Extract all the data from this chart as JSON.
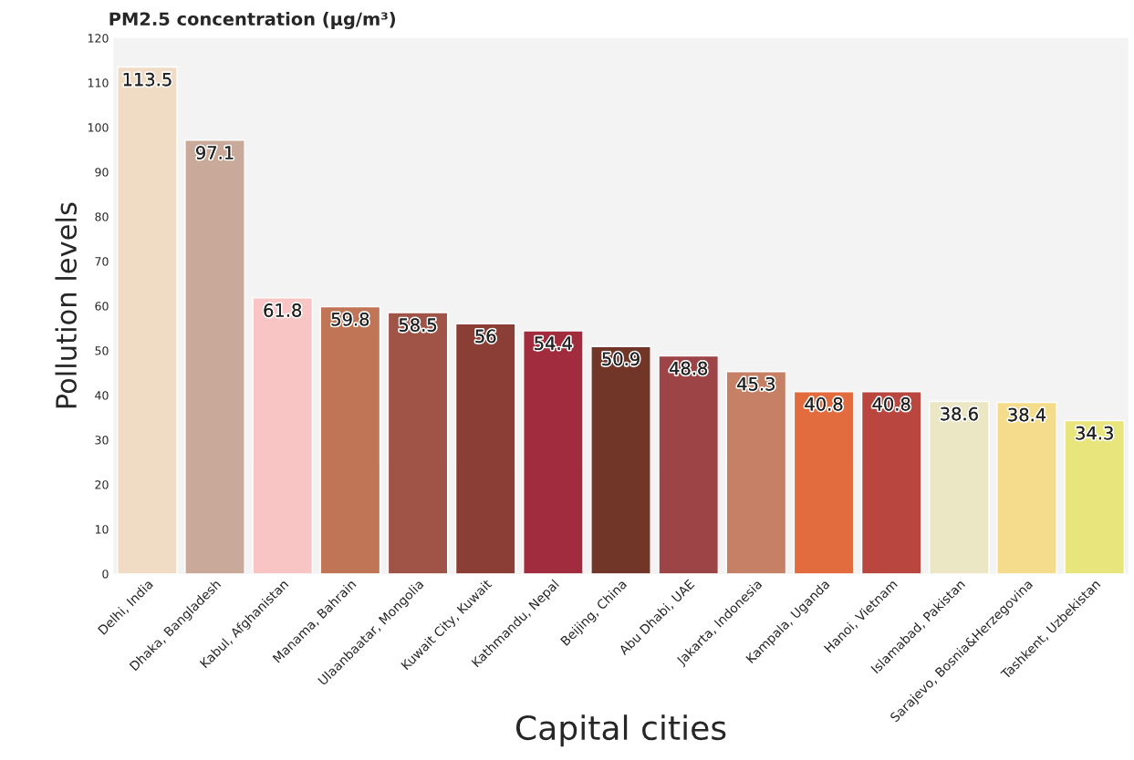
{
  "chart_data": {
    "type": "bar",
    "title": "PM2.5 concentration (µg/m³)",
    "xlabel": "Capital cities",
    "ylabel": "Pollution levels",
    "categories": [
      "Delhi, India",
      "Dhaka, Bangladesh",
      "Kabul, Afghanistan",
      "Manama, Bahrain",
      "Ulaanbaatar, Mongolia",
      "Kuwait City, Kuwait",
      "Kathmandu, Nepal",
      "Beijing, China",
      "Abu Dhabi, UAE",
      "Jakarta, Indonesia",
      "Kampala, Uganda",
      "Hanoi, Vietnam",
      "Islamabad, Pakistan",
      "Sarajevo, Bosnia&Herzegovina",
      "Tashkent, Uzbekistan"
    ],
    "values": [
      113.5,
      97.1,
      61.8,
      59.8,
      58.5,
      56,
      54.4,
      50.9,
      48.8,
      45.3,
      40.8,
      40.8,
      38.6,
      38.4,
      34.3
    ],
    "colors": [
      "#f0dcc4",
      "#c9aa9a",
      "#f8c4c4",
      "#c07656",
      "#a05448",
      "#8b3e35",
      "#a12c3d",
      "#723628",
      "#9c4446",
      "#c58066",
      "#e26c3e",
      "#ba4640",
      "#ebe6c4",
      "#f5dc8c",
      "#e8e57c"
    ],
    "ylim": [
      0,
      120
    ],
    "yticks": [
      0,
      10,
      20,
      30,
      40,
      50,
      60,
      70,
      80,
      90,
      100,
      110,
      120
    ],
    "grid": false,
    "data_labels": true
  }
}
